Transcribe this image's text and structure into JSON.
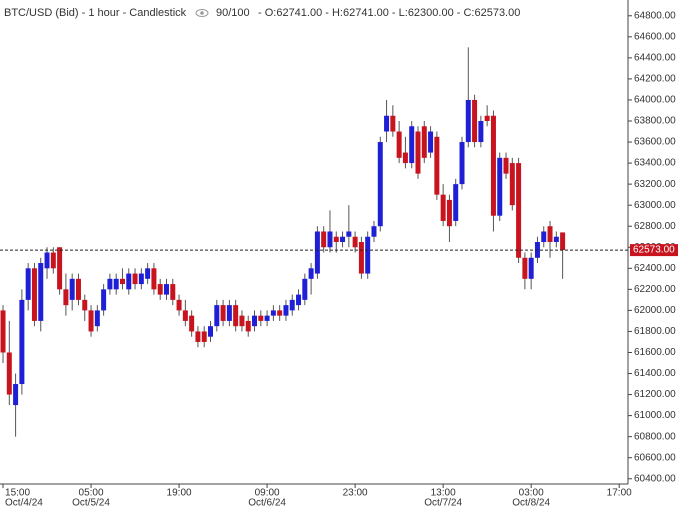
{
  "header": {
    "title": "BTC/USD (Bid) - 1 hour - Candlestick",
    "count": "90/100",
    "ohlc": "- O:62741.00 - H:62741.00 - L:62300.00 - C:62573.00"
  },
  "chart_data": {
    "type": "candlestick",
    "up_color": "#1f1fd6",
    "down_color": "#c8141e",
    "open": [
      62000,
      61600,
      61100,
      61300,
      62100,
      62400,
      61900,
      62400,
      62550,
      62600,
      62200,
      62100,
      62300,
      62100,
      62000,
      61850,
      62000,
      62200,
      62200,
      62300,
      62200,
      62350,
      62250,
      62300,
      62400,
      62250,
      62150,
      62250,
      62100,
      62000,
      61950,
      61800,
      61800,
      61750,
      61850,
      62050,
      61900,
      62050,
      61950,
      61900,
      61850,
      61950,
      61900,
      61950,
      62000,
      61950,
      62000,
      62050,
      62100,
      62300,
      62350,
      62750,
      62600,
      62700,
      62650,
      62700,
      62700,
      62650,
      62350,
      62700,
      62800,
      63700,
      63850,
      63700,
      63500,
      63400,
      63700,
      63750,
      63500,
      63650,
      63100,
      63050,
      62850,
      63200,
      63600,
      64000,
      63600,
      63850,
      63850,
      62900,
      63450,
      63400,
      63400,
      62500,
      62300,
      62500,
      62650,
      62800,
      62650,
      62741
    ],
    "high": [
      62050,
      61900,
      61400,
      62200,
      62450,
      62450,
      62500,
      62600,
      62600,
      62600,
      62350,
      62350,
      62350,
      62150,
      62050,
      62050,
      62250,
      62350,
      62350,
      62400,
      62400,
      62400,
      62400,
      62450,
      62450,
      62300,
      62300,
      62300,
      62150,
      62100,
      62000,
      61850,
      61850,
      61900,
      62100,
      62100,
      62100,
      62100,
      62000,
      61950,
      62000,
      62000,
      62000,
      62050,
      62050,
      62100,
      62150,
      62200,
      62350,
      62450,
      62800,
      62800,
      62950,
      62750,
      62750,
      63000,
      62750,
      62700,
      62750,
      62850,
      63650,
      64000,
      63950,
      63800,
      63650,
      63800,
      63750,
      63800,
      63750,
      63700,
      63200,
      63100,
      63250,
      63650,
      64500,
      64050,
      63850,
      63950,
      63900,
      63500,
      63500,
      63450,
      63450,
      62550,
      62550,
      62700,
      62800,
      62850,
      62750,
      62741
    ],
    "low": [
      61500,
      61100,
      60800,
      61200,
      62000,
      61850,
      61800,
      62300,
      62350,
      62150,
      61950,
      62000,
      62050,
      61900,
      61750,
      61800,
      61950,
      62150,
      62150,
      62200,
      62150,
      62200,
      62200,
      62250,
      62150,
      62100,
      62100,
      62050,
      61950,
      61850,
      61750,
      61650,
      61650,
      61700,
      61800,
      61850,
      61850,
      61800,
      61800,
      61750,
      61800,
      61850,
      61850,
      61900,
      61900,
      61900,
      61950,
      62000,
      62050,
      62150,
      62300,
      62550,
      62550,
      62550,
      62600,
      62600,
      62550,
      62300,
      62300,
      62650,
      62750,
      63600,
      63650,
      63400,
      63350,
      63350,
      63250,
      63400,
      63450,
      63050,
      62800,
      62650,
      62800,
      63150,
      63550,
      63550,
      63550,
      63750,
      62750,
      62850,
      63250,
      62950,
      62450,
      62200,
      62200,
      62450,
      62600,
      62500,
      62600,
      62300
    ],
    "close": [
      61600,
      61200,
      61300,
      62100,
      62400,
      61900,
      62450,
      62550,
      62400,
      62200,
      62050,
      62300,
      62100,
      62000,
      61800,
      62000,
      62200,
      62300,
      62300,
      62250,
      62350,
      62250,
      62350,
      62400,
      62200,
      62150,
      62250,
      62100,
      62000,
      61900,
      61800,
      61700,
      61700,
      61850,
      62050,
      61900,
      62050,
      61850,
      61850,
      61800,
      61950,
      61900,
      61950,
      62000,
      61950,
      62050,
      62100,
      62150,
      62300,
      62400,
      62750,
      62600,
      62750,
      62650,
      62700,
      62750,
      62600,
      62350,
      62700,
      62800,
      63600,
      63850,
      63700,
      63450,
      63400,
      63750,
      63300,
      63450,
      63700,
      63100,
      62850,
      62800,
      63200,
      63600,
      64000,
      63600,
      63800,
      63800,
      62900,
      63450,
      63300,
      63000,
      62500,
      62300,
      62500,
      62650,
      62750,
      62650,
      62700,
      62573
    ],
    "last_label": "62573.00",
    "xlim": [
      -0.48,
      99.4
    ],
    "xticks": [
      {
        "value": 0,
        "label": "15:00",
        "date": "Oct/4/24"
      },
      {
        "value": 14,
        "label": "05:00",
        "date": "Oct/5/24"
      },
      {
        "value": 28,
        "label": "19:00"
      },
      {
        "value": 42,
        "label": "09:00",
        "date": "Oct/6/24"
      },
      {
        "value": 56,
        "label": "23:00"
      },
      {
        "value": 70,
        "label": "13:00",
        "date": "Oct/7/24"
      },
      {
        "value": 84,
        "label": "03:00",
        "date": "Oct/8/24"
      },
      {
        "value": 98,
        "label": "17:00"
      }
    ],
    "ylim": [
      60350,
      64950
    ],
    "yticks": [
      {
        "value": 60400,
        "label": "60400.00"
      },
      {
        "value": 60600,
        "label": "60600.00"
      },
      {
        "value": 60800,
        "label": "60800.00"
      },
      {
        "value": 61000,
        "label": "61000.00"
      },
      {
        "value": 61200,
        "label": "61200.00"
      },
      {
        "value": 61400,
        "label": "61400.00"
      },
      {
        "value": 61600,
        "label": "61600.00"
      },
      {
        "value": 61800,
        "label": "61800.00"
      },
      {
        "value": 62000,
        "label": "62000.00"
      },
      {
        "value": 62200,
        "label": "62200.00"
      },
      {
        "value": 62400,
        "label": "62400.00"
      },
      {
        "value": 62600,
        "label": "62600.00"
      },
      {
        "value": 62800,
        "label": "62800.00"
      },
      {
        "value": 63000,
        "label": "63000.00"
      },
      {
        "value": 63200,
        "label": "63200.00"
      },
      {
        "value": 63400,
        "label": "63400.00"
      },
      {
        "value": 63600,
        "label": "63600.00"
      },
      {
        "value": 63800,
        "label": "63800.00"
      },
      {
        "value": 64000,
        "label": "64000.00"
      },
      {
        "value": 64200,
        "label": "64200.00"
      },
      {
        "value": 64400,
        "label": "64400.00"
      },
      {
        "value": 64600,
        "label": "64600.00"
      },
      {
        "value": 64800,
        "label": "64800.00"
      }
    ]
  }
}
